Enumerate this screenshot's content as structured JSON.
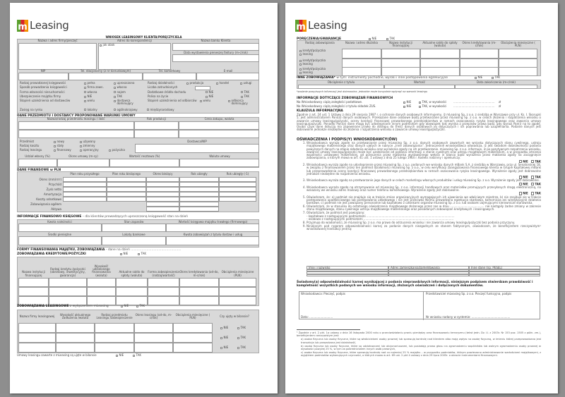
{
  "brand": {
    "logo_text": "Leasing",
    "logo_mark": "m",
    "colors": {
      "green": "#5aa02c",
      "red": "#d8232a",
      "orange": "#f39200"
    }
  },
  "p1": {
    "title": "WNIOSEK LEASINGOWY KLIENTA/PORĘCZYCIELA",
    "client": {
      "headers": [
        "Nazwa i adres firmy/pieczęć",
        "Adres do korespondencji",
        "Nazwa banku Klienta"
      ],
      "same_as": "jak obok",
      "invoice_date": "Data wystawienia pierwszej faktury (m-c/rok)",
      "contact_headers": [
        "NIP",
        "Tel. stacjonarny (z nr kierunkowym)",
        "Tel. komórkowy",
        "E-mail"
      ],
      "options": [
        {
          "label": "Rodzaj prowadzonej księgowości",
          "choices": [
            "pełna",
            "uproszczona"
          ]
        },
        {
          "label": "Rodzaj działalności",
          "choices": [
            "produkcja",
            "handel",
            "usługi"
          ]
        },
        {
          "label": "Sposób prowadzenia księgowości",
          "choices": [
            "firma zewn.",
            "własna"
          ]
        },
        {
          "label": "Liczba zatrudnionych",
          "choices": []
        },
        {
          "label": "Forma własności nieruchomości",
          "choices": [
            "własna",
            "najem"
          ]
        },
        {
          "label": "Dodatkowe źródła dochodu",
          "choices": [
            "NIE",
            "TAK"
          ]
        },
        {
          "label": "Ubezpieczenie majątku firmy",
          "choices": [
            "NIE",
            "TAK"
          ]
        },
        {
          "label": "Polisa na życie",
          "choices": [
            "NIE",
            "TAK"
          ]
        },
        {
          "label": "Stopień uzależnienia od dostawców",
          "choices": [
            "wielu",
            "dostawca dominujący"
          ]
        },
        {
          "label": "Stopień uzależnienia od odbiorców",
          "choices": [
            "wielu",
            "odbiorca dominujący"
          ]
        },
        {
          "label": "Zasięg na rynku",
          "choices": [
            "lokalny",
            "ogólnokrajowy",
            "międzynarodowy"
          ]
        }
      ]
    },
    "subject": {
      "title": "DANE PRZEDMIOTU I DOSTAWCY PROPONOWANE WARUNKI UMOWY",
      "headers": [
        "Nazwa/rodzaj przedmiotu leasingu / ilość",
        "Rok produkcji",
        "Cena zakupu, waluta"
      ],
      "options": [
        {
          "label": "Przedmiot",
          "choices": [
            "nowy",
            "używany"
          ]
        },
        {
          "label": "Rodzaj kosztu",
          "choices": [
            "stały",
            "zmienny"
          ]
        },
        {
          "label": "Rodzaj leasingu",
          "choices": [
            "finansowy",
            "operacyjny",
            "pożyczka"
          ]
        }
      ],
      "supplier": "Dostawca/NIP",
      "terms_headers": [
        "Udział własny (%)",
        "Okres umowy (m-cy)",
        "Wartość resztowa (%)",
        "Waluta umowy"
      ]
    },
    "financial": {
      "title": "DANE FINANSOWE w PLN",
      "columns": [
        "Plan roku przyszłego",
        "Plan roku bieżącego",
        "Okres bieżący",
        "Rok ubiegły",
        "Rok ubiegły (-1)"
      ],
      "rows": [
        "Okres (mm/rrrr)",
        "Przychód",
        "Zysk netto",
        "Amortyzacja",
        "Koszty odsetkowe",
        "Zobowiązania ogółem",
        "Aktywa"
      ]
    },
    "accounting": {
      "title": "INFORMACJE FINANSOWO KSIĘGOWE",
      "subtitle": " – dla klientów prowadzących uproszczoną księgowość stan na dzień",
      "headers_top": [
        "Kwota należności",
        "Stan zapasów",
        "Wartość księgowa majątku trwałego (firmowego)"
      ],
      "headers_bottom": [
        "Środki pieniężne",
        "Lokaty bankowe",
        "Kwota zobowiązań z tytułu dostaw i usług"
      ]
    },
    "funding": {
      "title": "FORMY FINANSOWANIA MAJĄTKU, ZOBOWIĄZANIA",
      "date_label": " - dane na dzień",
      "credit_title": "ZOBOWIĄZANIA KREDYTOWE/POŻYCZKI",
      "no": "NIE",
      "yes": "TAK",
      "credit_headers": [
        "Nazwa instytucji finansującej",
        "Rodzaj kredytu /pożyczki (obrotowy, inwestycyjny, gwarancja)",
        "Wysokość udzielonego finansowania (waluta)",
        "Aktualne saldo do spłaty (waluta)",
        "Forma zabezpieczenia (rodzaj/wartość)",
        "Okres kredytowania (od-do, m-c/rok)",
        "Obciążenia miesięczne (PLN)"
      ],
      "leasing_title": "ZOBOWIĄZANIA LEASINGOWE",
      "leasing_sub": " z wyłączeniem mLeasing",
      "leasing_headers": [
        "Nazwa firmy leasingowej",
        "Wysokość aktualnego zadłużenia /waluta",
        "Rodzaj przedmiotu Leasingu /zabezpieczenie",
        "Okres leasingu (od-do, m-c/rok)",
        "Obciążenia miesięczne ( PLN)",
        "Czy ujęty w bilansie?"
      ],
      "balance_note": "Umowy leasingu zawarte z mLeasing są ujęte w bilansie"
    }
  },
  "p2": {
    "guarantees": {
      "title": "PORĘCZENIA/GWARANCJE",
      "no": "NIE",
      "yes": "TAK",
      "headers": [
        "Rodzaj zobowiązania",
        "Nazwa i adres dłużnika",
        "Nazwa instytucji finansującej",
        "Aktualne saldo do spłaty (waluta)",
        "Okres kredytowania (m-c/rok)",
        "Obciążenia miesięczne ( PLN)"
      ],
      "types": [
        "kredyt/pożyczka",
        "leasing"
      ]
    },
    "other": {
      "title": "INNE ZOBOWIĄZANIA*",
      "sub": " w tym: instrumenty pochodne, wyroki i inne postępowania egzekucyjne",
      "headers": [
        "Obciążenie z tytułu",
        "Wartość",
        "Data zakończenia (m-c/rok)"
      ],
      "footnote": "*podanie powyższych informacji jest dobrowolne, jednakże może korzystnie wpłynąć na warunki leasingu"
    },
    "arrears": {
      "title": "INFORMACJE DOTYCZĄCE ZOBOWIĄZAŃ FINANSOWYCH",
      "lines": [
        "Na Wnioskodawcy ciążą zaległości podatkowe.",
        "Na Wnioskodawcy ciążą zaległości z tytułu składek ZUS."
      ],
      "no": "NIE",
      "yes": "TAK, w wysokości",
      "dots": "..............................................",
      "currency": "zł"
    },
    "clause": {
      "title": "KLAUZULA INFORMACYJNA",
      "text": "Zgodnie z art. 24 ust. 1 Ustawy z dnia 29 sierpnia 1997 r. o ochronie danych osobowych informujemy, iż mLeasing Sp. z o.o. z siedzibą w Warszawie przy ul. Ks. I. Skorupki 5, jest administratorem Pani(a) danych osobowych. Przekazane dane osobowe będą przetwarzane przez mLeasing Sp. z o.o. w celach złożenia i rozpatrzenia wniosku o zawarcie umowy leasingu/pożyczki, oceny kondycji finansowej prowadzonego przedsiębiorstwa w ramach oszacowania ryzyka leasingowego oraz zawarcia umowy leasingu/pożyczki. Ponadto Pani(a) dane mogą być udostępniane innym podmiotom gdy obowiązek taki wynika z przepisów prawa bądź, gdy wyrazi Pan(i) na to zgodę. Osoba czyje dane dotyczą ma zapewnione prawo do dostępu do treści danych osobowych jej dotyczących i ich poprawiania lub uzupełniania. Podanie danych jest dobrowolne jednakże niezbędne do złożenia i rozpatrzenia wniosku o zawarcie umowy leasingu/pożyczki."
    },
    "statements": {
      "title": "OŚWIADCZENIA I PODPIS(Y) WNIOSKODAWCY(ÓW)",
      "no": "NIE",
      "yes": "TAK",
      "items": [
        {
          "text": "Wnioskodawca wyraża zgodę na przetwarzanie przez mLeasing Sp. z o.o. danych osobowych zawartych we wniosku dotyczących stanu cywilnego, ustroju majątkowego małżeńskiego oraz danych ujętych w rubryce „Inne zobowiązania”. Jednocześnie wnioskodawca oświadcza, iż jest świadom dobrowolności podania powyższych danych na etapie składania wniosku oraz wyrażenia zgody na ich przetwarzanie. mLeasing Sp. z o.o. informuje, iż po pozytywnym rozpatrzeniu wniosku, zawarcie umowy leasingu/pożyczki może być uzależnione od podania informacji o stanie cywilnym oraz ustroju majątkowym małżeńskim, a w przypadku istnienia wspólności ustawowej małżeńskiej, od poręczenia przez małżonka wystawionego weksla in blanco bądź wyrażenia przez małżonka zgody na zaciągnięcie zobowiązania, o którym mowa w art. 41 ust. 1 ustawy z dnia 25 lutego 1964 r. Kodeks rodzinny i opiekuńczy.",
          "consent": true
        },
        {
          "text": "Wnioskodawca wyraża zgodę na udostępnienie przez mLeasing Sp. z o.o. podanych we wniosku danych mBank S.A. z siedzibą w Warszawie, przy ul. Senatorskiej 18, w związku z finansowaniem przez ten podmiot działalności mLeasing Sp. z o.o., w celu weryfikacji zaangażowania finansowego klienta w Grupie Kapitałowej mBank lub przeprowadzenia oceny kondycji finansowej prowadzonego przedsiębiorstwa w ramach oszacowania ryzyka leasingowego. Wyrażenie zgody jest dobrowolne jednakże niezbędne do rozpatrzenia wniosku.",
          "consent": true
        },
        {
          "text": "Wnioskodawca wyraża zgodę na przetwarzanie jego danych w celach marketingu własnych produktów i usług mLeasing Sp. z o.o. Wyrażenie zgody jest dobrowolne.",
          "consent": true
        },
        {
          "text": "Wnioskodawca wyraża zgodę na otrzymywanie od mLeasing Sp. z o.o. informacji handlowych oraz materiałów promujących przesyłanych drogą elektroniczną, na wskazany we wniosku adres mailowy oraz numer telefonu komórkowego. Wyrażenie zgody jest dobrowolne.",
          "consent": true
        },
        {
          "text": "Oświadczam, że: a) podmiot nie znajduje się w trakcie zmian organizacyjnych wymagających ich ujawnienia we właściwym rejestrze, b) nie znajduje się w trakcie postępowania upadłościowego lub postępowania układowego i nie jest przeciwko Niemu prowadzona egzekucja skarbowa, komornicza ani windykacyjne działania bankowe, c) podmiot nie jest powiązany personalnie lub kapitałowo z członkami organów mLeasing Sp. z o.o. lub osobami zajmującymi kierownicze stanowiska.",
          "consent": false
        },
        {
          "text": "Oświadczam, że w stosunku do ostatniego oświadczenia majątkowego złożonego przez nas w dniu ...................................... nie nastąpiły żadne zmiany w zakresie stanu majątkowego, stanu cywilnego ustroju majątkowego małżeńskiego oraz posiadanych zobowiązań kredytowych i leasingowych.",
          "consent": false
        },
        {
          "text": "Oświadczam, że podmiot jest powiązany:",
          "sub": [
            "- kapitałowo z następującymi podmiotami ..................................................................................................",
            "- osobowo z następującymi podmiotami ...................................................................................................."
          ],
          "consent": false
        },
        {
          "text": "Przyjmuję do wiadomości, że mLeasing Sp. z o.o. ma prawo do odrzucenia wniosku i nie zawarcia umowy leasingu/pożyczki bez podania przyczyny.",
          "consent": false
        },
        {
          "text": "Niniejszym pod rygorem odpowiedzialności karnej za podanie danych niezgodnych ze stanem faktycznym, oświadczam, że beneficjentem rzeczywistym¹ wnioskowanej transakcji jest/są:",
          "consent": false
        }
      ]
    },
    "beneficiary_headers": [
      "Imię i nazwisko",
      "Adres zamieszkania/zameldowania",
      "Inne dane (np. PESEL)"
    ],
    "declaration": "Świadomy(a) odpowiedzialności karnej wynikającej z podania nieprawdziwych informacji, niniejszym podpisem stwierdzam prawdziwość i kompletność wszystkich podanych we wniosku informacji, złożonych oświadczeń i dołączonych dokumentów.",
    "signature": {
      "applicant": "Wnioskodawca: Pieczęć, podpis",
      "date": "Data: ..........................",
      "representative": "Przedstawiciel mLeasing Sp. z o.o. Pieczęć funkcyjna, podpis",
      "app_number": "Nr wniosku nadany w systemie: ..........................................."
    },
    "footnotes": [
      "¹ Zgodnie z art. 2 pkt. 1a ustawy z dnia 16 listopada 2000 roku o przeciwdziałaniu praniu pieniędzy oraz finansowaniu terroryzmu (tekst jedn. Dz. U. z 2003r. Nr 153 poz. 1505 z późn. zm.), beneficjentem rzeczywistym jest:",
      "a) osoba fizyczna lub osoby fizyczne, które są właścicielami osoby prawnej lub sprawują kontrolę nad klientem albo mają wpływ na osobę fizyczną, w imieniu której przeprowadzana jest transakcja lub prowadzona jest działalność,",
      "b) osoba fizyczna lub osoby fizyczne, które są udziałowcami lub akcjonariuszami, lub posiadają prawo głosu na zgromadzeniu wspólników lub walnym zgromadzeniu osoby prawnej w wysokości powyżej 25 %, w tym za pośrednictwem innych osób prawnych,",
      "c) osoba fizyczna lub osoby fizyczne, które sprawują kontrolę nad co najmniej 25 % majątku – w przypadku podmiotów, którym powierzono administrowanie wartościami majątkowymi, z wyjątkiem podmiotów wykonujących czynności, o których mowa w art. 69 ust. 2 pkt 4 ustawy z dnia 29 lipca 2005r. o obrocie instrumentami finansowymi."
    ]
  }
}
